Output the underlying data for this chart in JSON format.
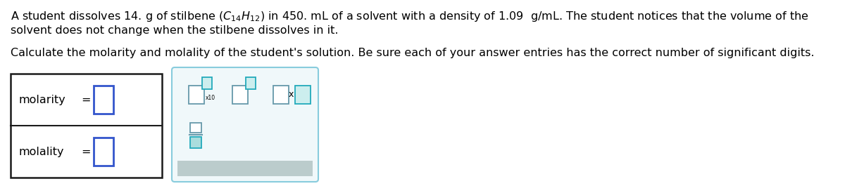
{
  "line1": "A student dissolves 14. g of stilbene $(C_{14}H_{12})$ in 450. mL of a solvent with a density of 1.09  g/mL. The student notices that the volume of the",
  "line2": "solvent does not change when the stilbene dissolves in it.",
  "line3": "Calculate the molarity and molality of the student's solution. Be sure each of your answer entries has the correct number of significant digits.",
  "label1": "molarity",
  "label2": "molality",
  "eq_sign": "=",
  "bg_color": "#ffffff",
  "text_color": "#000000",
  "box_border_color": "#1a1a1a",
  "input_box_blue": "#3355cc",
  "btn_gray": "#6699aa",
  "btn_teal": "#22aabb",
  "panel_bg": "#f0f8fa",
  "panel_border": "#88ccdd",
  "gray_bar": "#bbcccc",
  "font_size": 11.5
}
